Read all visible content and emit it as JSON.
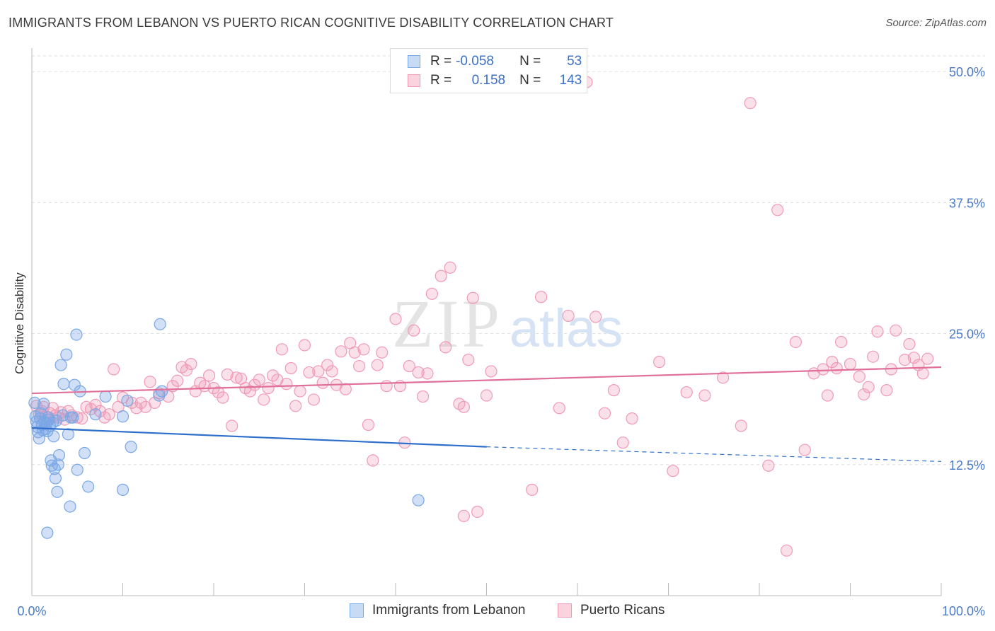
{
  "title": "IMMIGRANTS FROM LEBANON VS PUERTO RICAN COGNITIVE DISABILITY CORRELATION CHART",
  "source": "Source: ZipAtlas.com",
  "watermark": {
    "zip": "ZIP",
    "atlas": "atlas"
  },
  "legend": [
    {
      "r_label": "R =",
      "r_value": "-0.058",
      "n_label": "N =",
      "n_value": "53",
      "color": "#7aa7e6"
    },
    {
      "r_label": "R =",
      "r_value": "0.158",
      "n_label": "N =",
      "n_value": "143",
      "color": "#f09ab7"
    }
  ],
  "chart_data": {
    "type": "scatter",
    "title": "IMMIGRANTS FROM LEBANON VS PUERTO RICAN COGNITIVE DISABILITY CORRELATION CHART",
    "xlabel": "",
    "ylabel": "Cognitive Disability",
    "xlim": [
      0,
      100
    ],
    "ylim": [
      0,
      51.5
    ],
    "x_tick_labels": [
      "0.0%",
      "100.0%"
    ],
    "y_ticks": [
      12.5,
      25.0,
      37.5,
      50.0
    ],
    "y_tick_labels": [
      "12.5%",
      "25.0%",
      "37.5%",
      "50.0%"
    ],
    "grid": true,
    "legend_position": "top-center",
    "series": [
      {
        "name": "Immigrants from Lebanon",
        "color": "#7aa7e6",
        "line_color": "#2f6fcb",
        "trend": {
          "x": [
            0,
            50
          ],
          "y": [
            16.0,
            14.2
          ],
          "dashed_to": [
            100,
            12.8
          ]
        },
        "points": [
          [
            0.3,
            18.4
          ],
          [
            0.4,
            17.1
          ],
          [
            0.5,
            16.6
          ],
          [
            0.6,
            16.1
          ],
          [
            0.7,
            15.6
          ],
          [
            0.8,
            15.0
          ],
          [
            0.9,
            16.9
          ],
          [
            1.0,
            17.4
          ],
          [
            1.1,
            16.3
          ],
          [
            1.2,
            15.8
          ],
          [
            1.3,
            18.3
          ],
          [
            1.4,
            16.6
          ],
          [
            1.5,
            15.9
          ],
          [
            1.6,
            16.4
          ],
          [
            1.7,
            15.7
          ],
          [
            1.8,
            17.0
          ],
          [
            1.9,
            16.8
          ],
          [
            2.0,
            16.2
          ],
          [
            2.1,
            12.9
          ],
          [
            2.2,
            12.4
          ],
          [
            2.3,
            16.5
          ],
          [
            2.4,
            15.2
          ],
          [
            2.5,
            12.1
          ],
          [
            2.6,
            11.2
          ],
          [
            2.7,
            16.7
          ],
          [
            2.8,
            9.9
          ],
          [
            2.9,
            12.5
          ],
          [
            3.0,
            13.4
          ],
          [
            1.7,
            6.0
          ],
          [
            3.2,
            22.0
          ],
          [
            3.5,
            20.2
          ],
          [
            3.8,
            23.0
          ],
          [
            3.4,
            17.2
          ],
          [
            4.0,
            15.4
          ],
          [
            4.2,
            8.5
          ],
          [
            4.3,
            17.0
          ],
          [
            4.5,
            17.0
          ],
          [
            4.7,
            20.1
          ],
          [
            4.9,
            24.9
          ],
          [
            5.0,
            12.0
          ],
          [
            5.3,
            19.5
          ],
          [
            5.8,
            13.6
          ],
          [
            6.2,
            10.4
          ],
          [
            7.0,
            17.3
          ],
          [
            8.1,
            19.0
          ],
          [
            10.0,
            17.1
          ],
          [
            10.0,
            10.1
          ],
          [
            10.5,
            18.6
          ],
          [
            10.9,
            14.2
          ],
          [
            14.0,
            19.1
          ],
          [
            14.3,
            19.5
          ],
          [
            14.1,
            25.9
          ],
          [
            42.5,
            9.1
          ]
        ]
      },
      {
        "name": "Puerto Ricans",
        "color": "#f09ab7",
        "line_color": "#e0709a",
        "trend": {
          "x": [
            0,
            100
          ],
          "y": [
            19.3,
            21.8
          ]
        },
        "points": [
          [
            0.5,
            18.1
          ],
          [
            0.8,
            17.3
          ],
          [
            1.1,
            17.6
          ],
          [
            1.3,
            18.0
          ],
          [
            1.5,
            17.1
          ],
          [
            1.8,
            16.8
          ],
          [
            2.0,
            17.4
          ],
          [
            2.3,
            17.9
          ],
          [
            2.6,
            17.2
          ],
          [
            2.9,
            17.0
          ],
          [
            3.2,
            17.5
          ],
          [
            3.6,
            16.8
          ],
          [
            4.0,
            17.6
          ],
          [
            4.4,
            17.2
          ],
          [
            5.0,
            17.0
          ],
          [
            5.5,
            16.9
          ],
          [
            6.0,
            18.0
          ],
          [
            6.5,
            17.8
          ],
          [
            7.0,
            18.2
          ],
          [
            7.5,
            17.6
          ],
          [
            8.0,
            17.0
          ],
          [
            8.5,
            17.3
          ],
          [
            9.0,
            21.6
          ],
          [
            9.5,
            18.0
          ],
          [
            10.0,
            18.9
          ],
          [
            11.0,
            18.4
          ],
          [
            11.5,
            17.9
          ],
          [
            12.0,
            18.4
          ],
          [
            12.5,
            18.0
          ],
          [
            13.0,
            20.4
          ],
          [
            13.5,
            18.4
          ],
          [
            14.0,
            19.3
          ],
          [
            15.0,
            19.0
          ],
          [
            15.5,
            20.0
          ],
          [
            16.0,
            20.5
          ],
          [
            16.5,
            21.8
          ],
          [
            17.0,
            21.5
          ],
          [
            17.5,
            22.1
          ],
          [
            18.0,
            19.5
          ],
          [
            18.5,
            20.3
          ],
          [
            19.0,
            20.0
          ],
          [
            19.5,
            21.0
          ],
          [
            20.0,
            19.8
          ],
          [
            20.5,
            19.4
          ],
          [
            21.0,
            18.9
          ],
          [
            21.5,
            21.1
          ],
          [
            22.0,
            16.2
          ],
          [
            22.5,
            20.8
          ],
          [
            23.0,
            20.7
          ],
          [
            23.5,
            19.8
          ],
          [
            24.0,
            19.5
          ],
          [
            24.5,
            20.1
          ],
          [
            25.0,
            20.6
          ],
          [
            25.5,
            18.7
          ],
          [
            26.0,
            19.8
          ],
          [
            26.5,
            21.0
          ],
          [
            27.0,
            20.6
          ],
          [
            27.5,
            23.5
          ],
          [
            28.0,
            20.2
          ],
          [
            28.5,
            21.7
          ],
          [
            29.0,
            18.1
          ],
          [
            29.5,
            19.5
          ],
          [
            30.0,
            23.9
          ],
          [
            30.5,
            21.3
          ],
          [
            31.0,
            18.7
          ],
          [
            31.5,
            21.4
          ],
          [
            32.0,
            20.3
          ],
          [
            32.5,
            22.0
          ],
          [
            33.0,
            21.4
          ],
          [
            33.5,
            20.1
          ],
          [
            34.0,
            23.3
          ],
          [
            34.5,
            19.7
          ],
          [
            35.0,
            24.1
          ],
          [
            35.5,
            23.2
          ],
          [
            36.0,
            21.9
          ],
          [
            36.5,
            23.5
          ],
          [
            37.0,
            16.3
          ],
          [
            37.5,
            12.9
          ],
          [
            38.0,
            22.0
          ],
          [
            38.5,
            23.2
          ],
          [
            39.0,
            20.0
          ],
          [
            40.0,
            26.4
          ],
          [
            40.5,
            20.0
          ],
          [
            41.0,
            14.6
          ],
          [
            41.5,
            21.9
          ],
          [
            42.0,
            25.3
          ],
          [
            42.5,
            21.3
          ],
          [
            43.0,
            19.0
          ],
          [
            43.5,
            21.2
          ],
          [
            44.0,
            28.8
          ],
          [
            45.0,
            30.5
          ],
          [
            45.5,
            23.7
          ],
          [
            46.0,
            31.3
          ],
          [
            47.0,
            18.3
          ],
          [
            47.5,
            18.0
          ],
          [
            47.5,
            7.6
          ],
          [
            48.0,
            22.5
          ],
          [
            48.5,
            28.4
          ],
          [
            49.0,
            8.0
          ],
          [
            50.0,
            19.1
          ],
          [
            50.5,
            21.4
          ],
          [
            55.0,
            10.1
          ],
          [
            56.0,
            28.5
          ],
          [
            58.0,
            17.9
          ],
          [
            59.0,
            26.7
          ],
          [
            61.0,
            49.0
          ],
          [
            62.0,
            26.6
          ],
          [
            63.0,
            17.4
          ],
          [
            64.0,
            19.6
          ],
          [
            65.0,
            14.6
          ],
          [
            66.0,
            16.9
          ],
          [
            69.0,
            22.3
          ],
          [
            70.5,
            11.9
          ],
          [
            72.0,
            19.4
          ],
          [
            74.0,
            19.1
          ],
          [
            76.0,
            20.8
          ],
          [
            78.0,
            16.2
          ],
          [
            79.0,
            47.0
          ],
          [
            81.0,
            12.4
          ],
          [
            82.0,
            36.8
          ],
          [
            83.0,
            4.3
          ],
          [
            84.0,
            24.2
          ],
          [
            85.0,
            13.9
          ],
          [
            86.0,
            21.2
          ],
          [
            87.0,
            21.6
          ],
          [
            87.5,
            19.1
          ],
          [
            88.0,
            22.3
          ],
          [
            88.5,
            21.7
          ],
          [
            89.0,
            24.2
          ],
          [
            90.0,
            22.1
          ],
          [
            91.0,
            20.9
          ],
          [
            91.5,
            19.2
          ],
          [
            92.0,
            19.9
          ],
          [
            92.5,
            22.8
          ],
          [
            93.0,
            25.2
          ],
          [
            94.0,
            19.6
          ],
          [
            94.5,
            21.6
          ],
          [
            95.0,
            25.3
          ],
          [
            96.0,
            22.5
          ],
          [
            96.5,
            24.0
          ],
          [
            97.0,
            22.7
          ],
          [
            97.5,
            22.0
          ],
          [
            98.0,
            21.2
          ],
          [
            98.5,
            22.6
          ]
        ]
      }
    ]
  },
  "bottom_legend": [
    {
      "label": "Immigrants from Lebanon",
      "color": "#7aa7e6"
    },
    {
      "label": "Puerto Ricans",
      "color": "#f09ab7"
    }
  ]
}
